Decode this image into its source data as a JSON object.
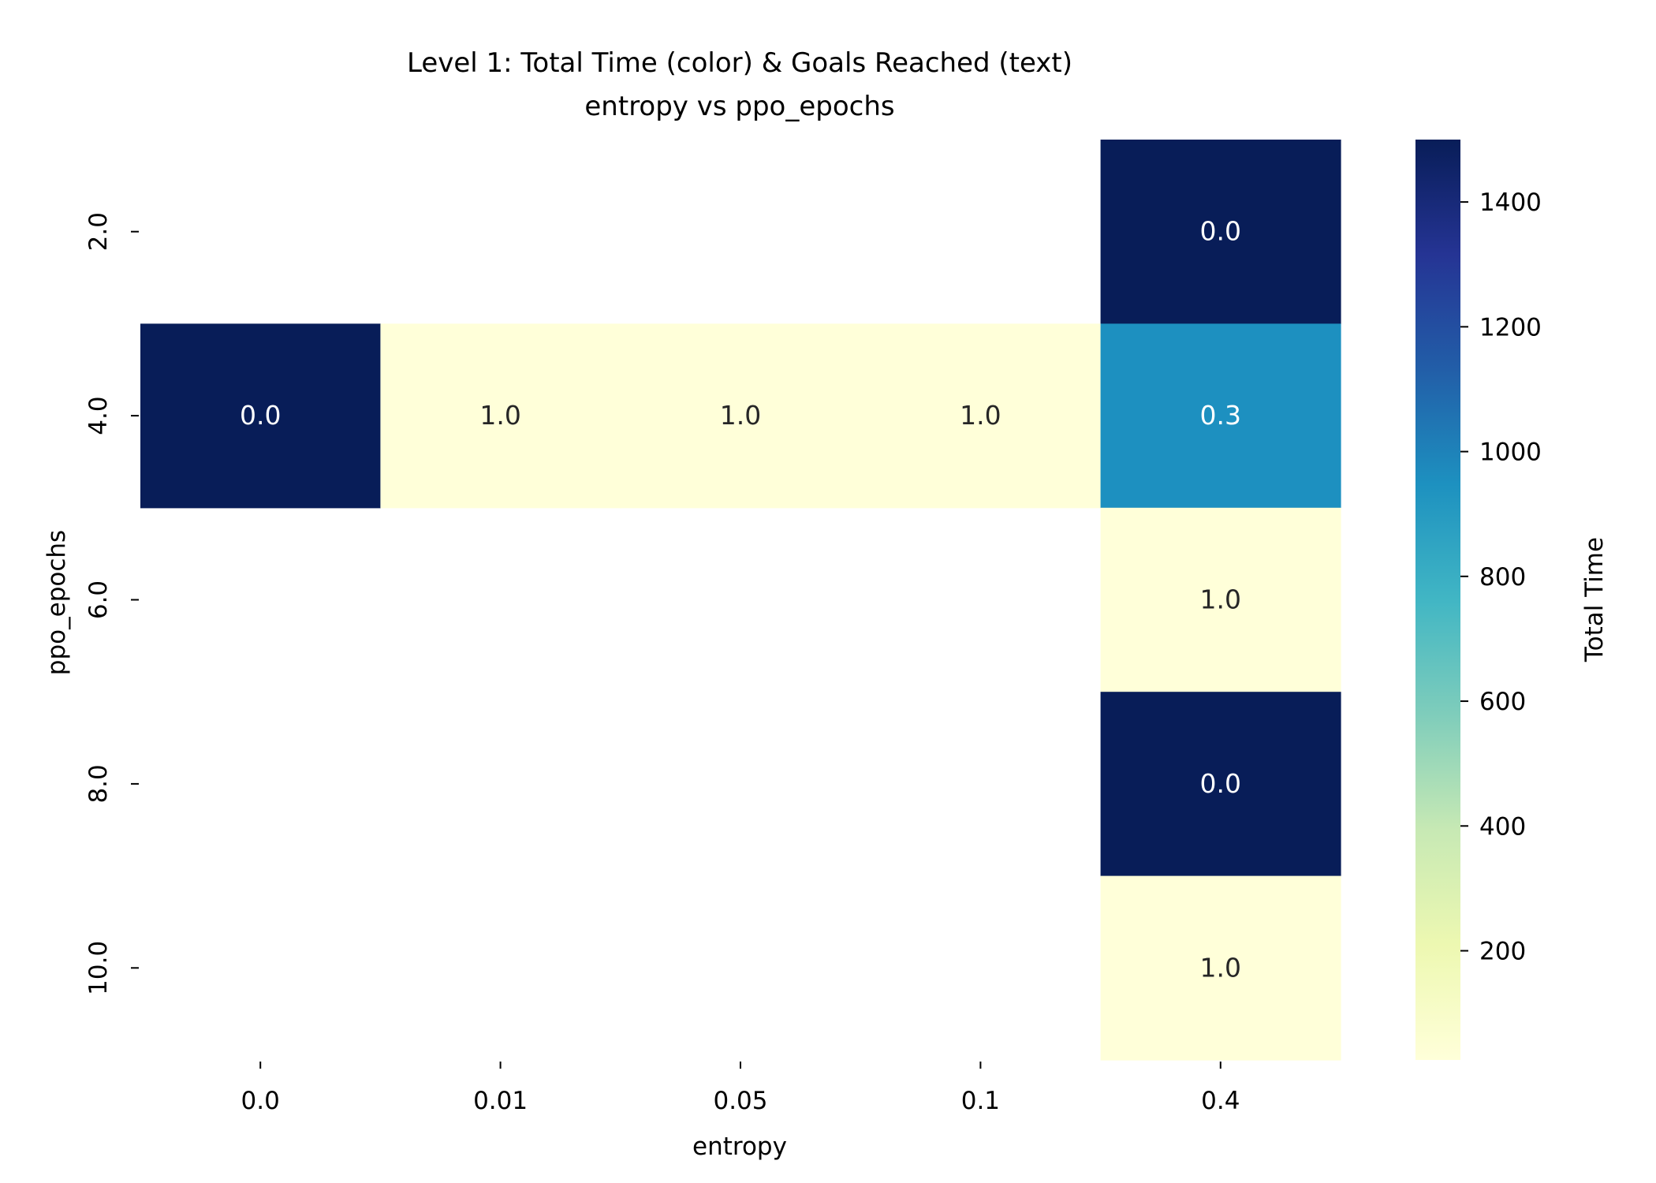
{
  "chart_data": {
    "type": "heatmap",
    "title": "Level 1: Total Time (color) & Goals Reached (text)",
    "subtitle": "entropy vs ppo_epochs",
    "xlabel": "entropy",
    "ylabel": "ppo_epochs",
    "x_categories": [
      "0.0",
      "0.01",
      "0.05",
      "0.1",
      "0.4"
    ],
    "y_categories": [
      "2.0",
      "4.0",
      "6.0",
      "8.0",
      "10.0"
    ],
    "color_values": [
      [
        null,
        null,
        null,
        null,
        1500
      ],
      [
        1500,
        25,
        25,
        25,
        950
      ],
      [
        null,
        null,
        null,
        null,
        25
      ],
      [
        null,
        null,
        null,
        null,
        1500
      ],
      [
        null,
        null,
        null,
        null,
        25
      ]
    ],
    "cell_text": [
      [
        null,
        null,
        null,
        null,
        "0.0"
      ],
      [
        "0.0",
        "1.0",
        "1.0",
        "1.0",
        "0.3"
      ],
      [
        null,
        null,
        null,
        null,
        "1.0"
      ],
      [
        null,
        null,
        null,
        null,
        "0.0"
      ],
      [
        null,
        null,
        null,
        null,
        "1.0"
      ]
    ],
    "colorbar": {
      "label": "Total Time",
      "colormap": "YlGnBu",
      "range": [
        25,
        1500
      ],
      "ticks": [
        200,
        400,
        600,
        800,
        1000,
        1200,
        1400
      ]
    },
    "grid": false
  }
}
